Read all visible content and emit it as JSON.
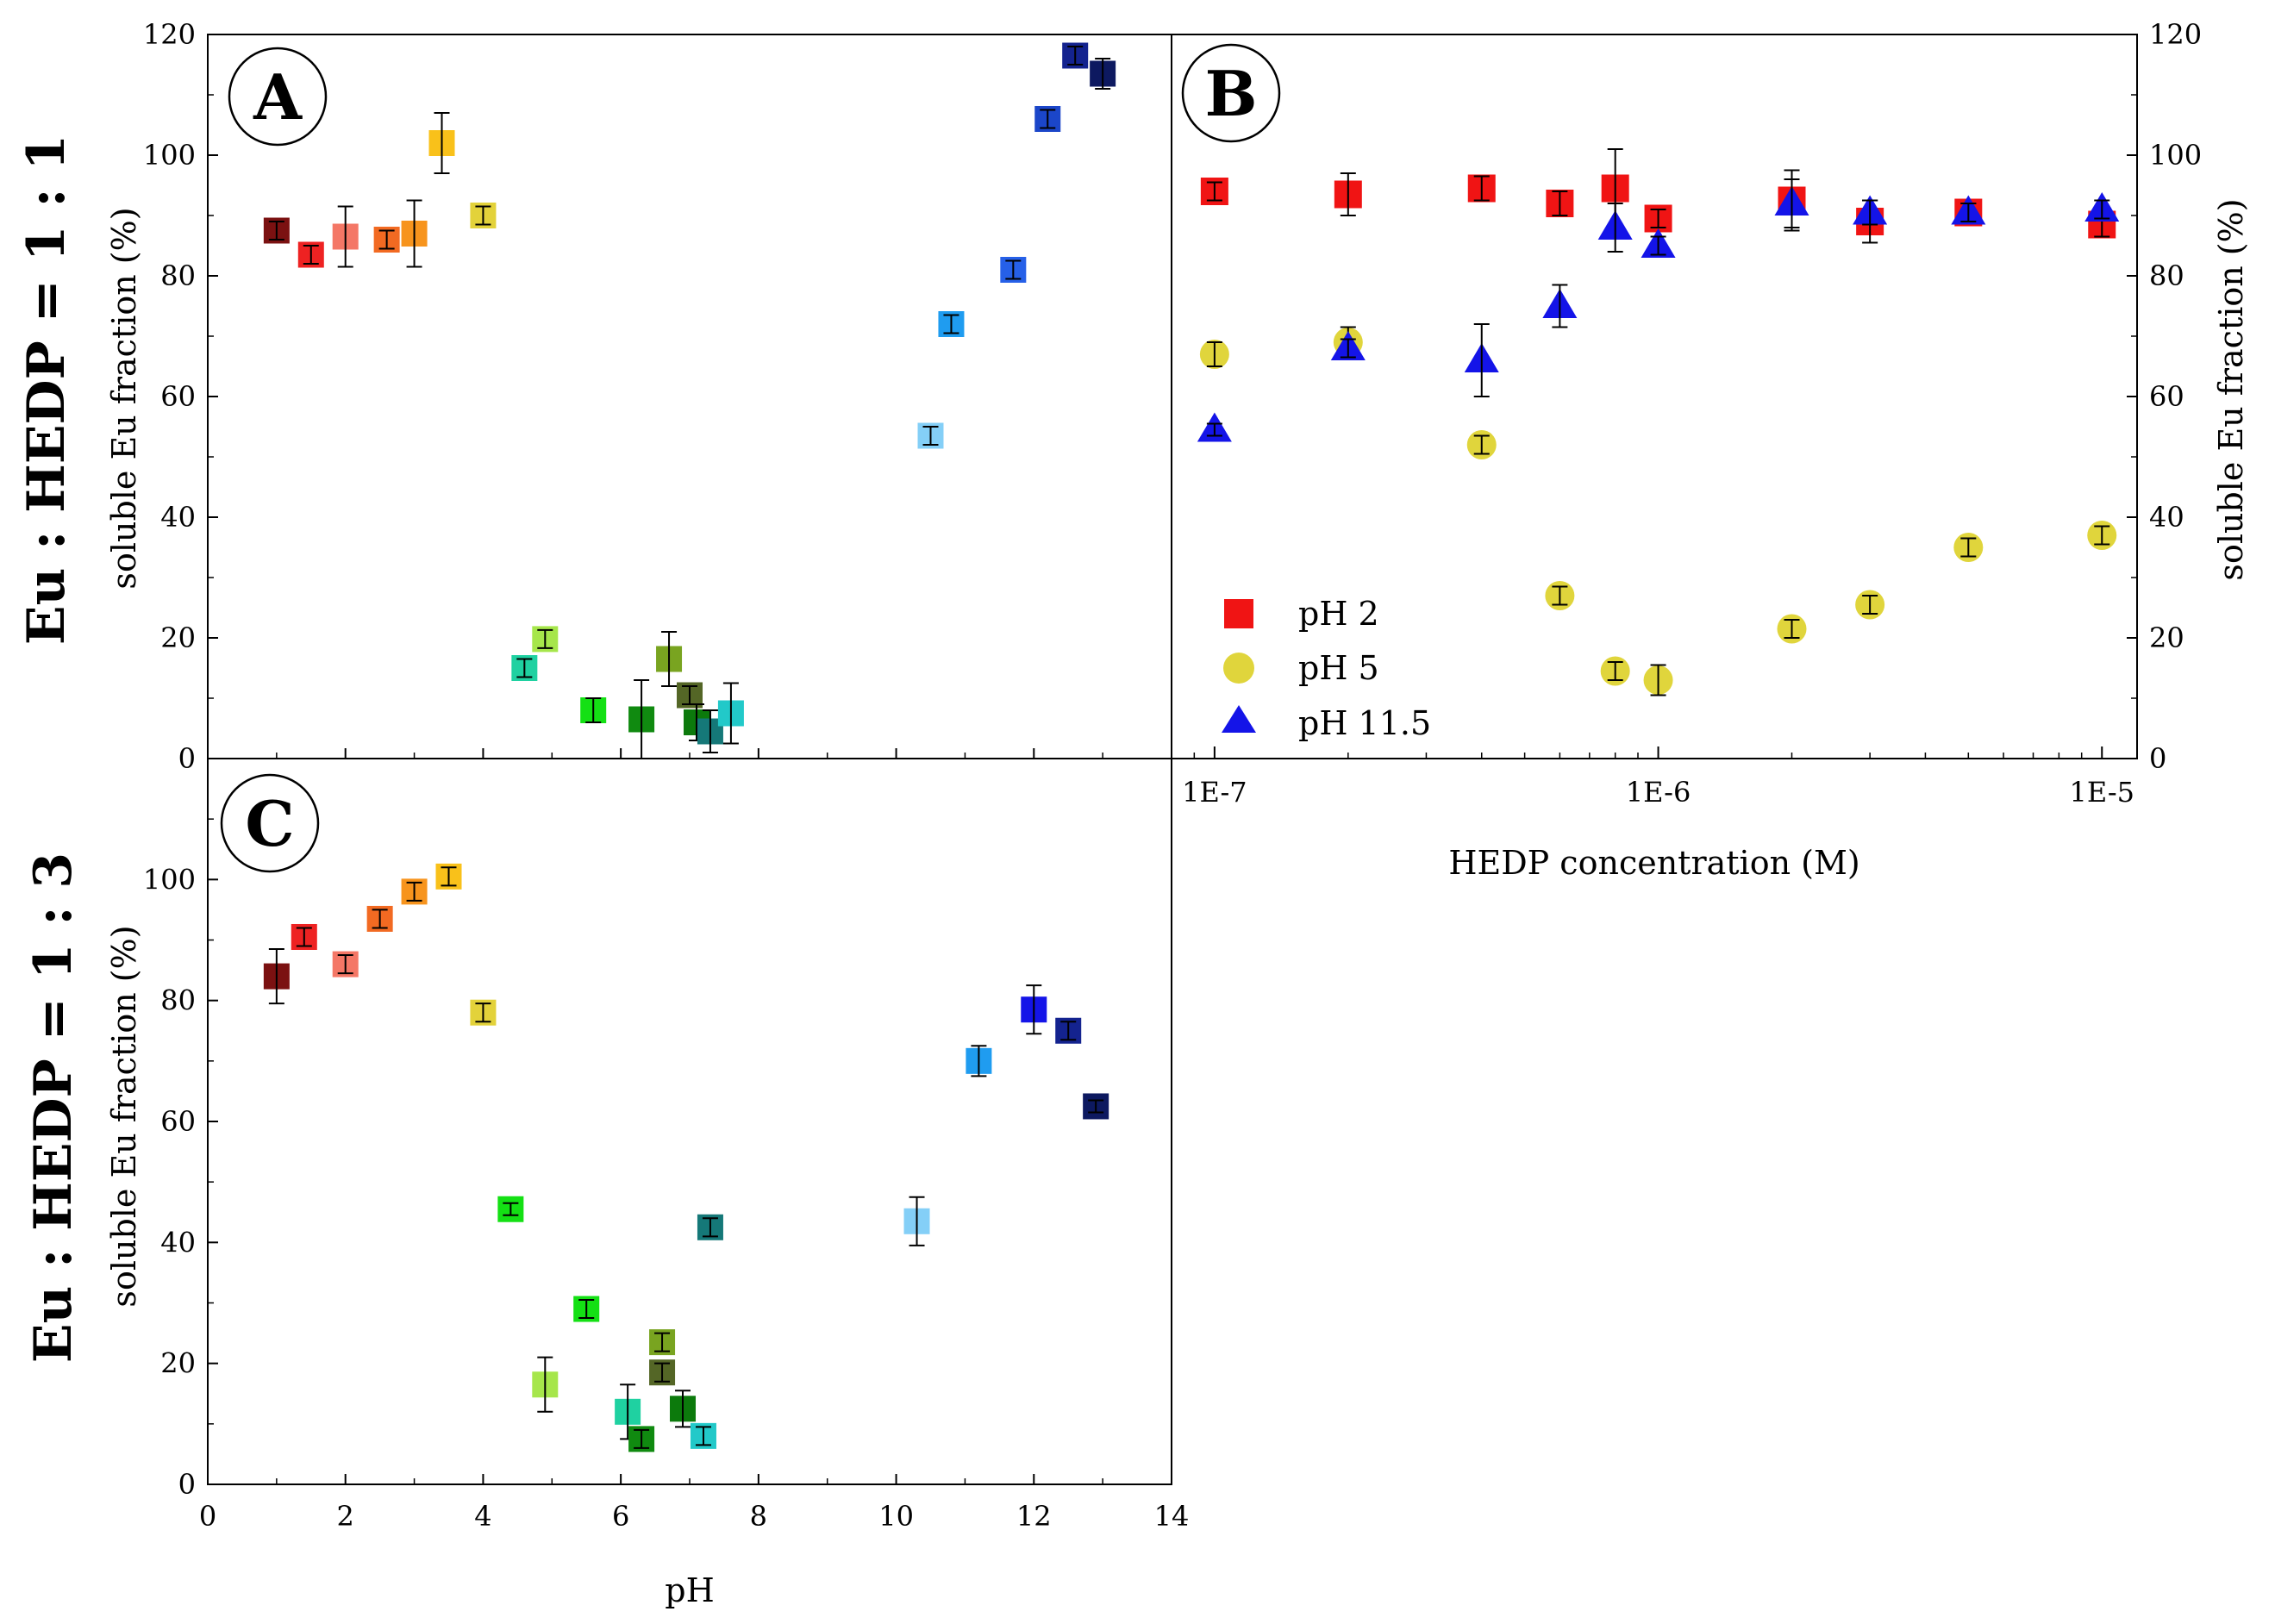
{
  "figure": {
    "row_labels": [
      "Eu : HEDP = 1 : 1",
      "Eu : HEDP = 1 : 3"
    ]
  },
  "chart_data": [
    {
      "panel": "A",
      "type": "scatter",
      "xlabel": "",
      "ylabel": "soluble Eu fraction (%)",
      "xlim": [
        0,
        14
      ],
      "ylim": [
        0,
        120
      ],
      "yticks": [
        "0",
        "20",
        "40",
        "60",
        "80",
        "100",
        "120"
      ],
      "show_x_ticklabels": false,
      "points": [
        {
          "x": 1.0,
          "y": 87.5,
          "err": 1.5,
          "color": "#7B1111"
        },
        {
          "x": 1.5,
          "y": 83.5,
          "err": 1.5,
          "color": "#EE2222"
        },
        {
          "x": 2.0,
          "y": 86.5,
          "err": 5.0,
          "color": "#F47766"
        },
        {
          "x": 2.6,
          "y": 86.0,
          "err": 1.5,
          "color": "#F26A22"
        },
        {
          "x": 3.0,
          "y": 87.0,
          "err": 5.5,
          "color": "#F7941D"
        },
        {
          "x": 3.4,
          "y": 102.0,
          "err": 5.0,
          "color": "#F9C11A"
        },
        {
          "x": 4.0,
          "y": 90.0,
          "err": 1.5,
          "color": "#E3D23A"
        },
        {
          "x": 4.6,
          "y": 15.0,
          "err": 1.5,
          "color": "#1FD1A1"
        },
        {
          "x": 4.9,
          "y": 19.8,
          "err": 1.5,
          "color": "#A6E64B"
        },
        {
          "x": 5.6,
          "y": 8.0,
          "err": 2.0,
          "color": "#14E014"
        },
        {
          "x": 6.3,
          "y": 6.5,
          "err": 6.5,
          "color": "#108A10"
        },
        {
          "x": 6.7,
          "y": 16.5,
          "err": 4.5,
          "color": "#79A420"
        },
        {
          "x": 7.0,
          "y": 10.5,
          "err": 1.5,
          "color": "#546626"
        },
        {
          "x": 7.1,
          "y": 6.0,
          "err": 3.0,
          "color": "#0C7A0C"
        },
        {
          "x": 7.3,
          "y": 4.5,
          "err": 3.5,
          "color": "#157878"
        },
        {
          "x": 7.6,
          "y": 7.5,
          "err": 5.0,
          "color": "#22C9C9"
        },
        {
          "x": 10.5,
          "y": 53.5,
          "err": 1.5,
          "color": "#84CFF7"
        },
        {
          "x": 10.8,
          "y": 72.0,
          "err": 1.5,
          "color": "#1F9CF0"
        },
        {
          "x": 11.7,
          "y": 81.0,
          "err": 1.5,
          "color": "#2660E8"
        },
        {
          "x": 12.2,
          "y": 106.0,
          "err": 1.5,
          "color": "#1B46C9"
        },
        {
          "x": 12.6,
          "y": 116.5,
          "err": 1.5,
          "color": "#14238F"
        },
        {
          "x": 13.0,
          "y": 113.5,
          "err": 2.5,
          "color": "#0D1960"
        }
      ]
    },
    {
      "panel": "B",
      "type": "scatter",
      "xlabel": "HEDP concentration (M)",
      "ylabel": "soluble Eu fraction (%)",
      "xscale": "log",
      "xlim": [
        8e-08,
        1.2e-05
      ],
      "ylim": [
        0,
        120
      ],
      "yticks": [
        "0",
        "20",
        "40",
        "60",
        "80",
        "100",
        "120"
      ],
      "xticks": [
        "1E-7",
        "1E-6",
        "1E-5"
      ],
      "legend_position": "bottom-left",
      "series": [
        {
          "name": "pH 2",
          "marker": "square",
          "color": "#F01414",
          "x": [
            1e-07,
            2e-07,
            4e-07,
            6e-07,
            8e-07,
            1e-06,
            2e-06,
            3e-06,
            5e-06,
            1e-05
          ],
          "y": [
            94.0,
            93.5,
            94.5,
            92.0,
            94.5,
            89.5,
            92.5,
            89.0,
            90.5,
            88.5
          ],
          "err": [
            1.5,
            3.5,
            2.0,
            2.0,
            6.5,
            1.5,
            5.0,
            3.5,
            1.5,
            2.0
          ]
        },
        {
          "name": "pH 5",
          "marker": "circle",
          "color": "#E0D53C",
          "x": [
            1e-07,
            2e-07,
            4e-07,
            6e-07,
            8e-07,
            1e-06,
            2e-06,
            3e-06,
            5e-06,
            1e-05
          ],
          "y": [
            67.0,
            69.0,
            52.0,
            27.0,
            14.5,
            13.0,
            21.5,
            25.5,
            35.0,
            37.0
          ],
          "err": [
            2.0,
            2.5,
            1.5,
            1.5,
            1.5,
            2.5,
            1.5,
            1.5,
            1.5,
            1.5
          ]
        },
        {
          "name": "pH 11.5",
          "marker": "triangle",
          "color": "#1414E8",
          "x": [
            1e-07,
            2e-07,
            4e-07,
            6e-07,
            8e-07,
            1e-06,
            2e-06,
            3e-06,
            5e-06,
            1e-05
          ],
          "y": [
            54.5,
            68.0,
            66.0,
            75.0,
            88.0,
            85.0,
            92.0,
            90.5,
            90.5,
            91.0
          ],
          "err": [
            1.0,
            1.5,
            6.0,
            3.5,
            4.0,
            1.5,
            4.0,
            2.0,
            1.5,
            1.5
          ]
        }
      ]
    },
    {
      "panel": "C",
      "type": "scatter",
      "xlabel": "pH",
      "ylabel": "soluble Eu fraction (%)",
      "xlim": [
        0,
        14
      ],
      "ylim": [
        0,
        120
      ],
      "yticks": [
        "0",
        "20",
        "40",
        "60",
        "80",
        "100",
        ""
      ],
      "xticks": [
        "0",
        "2",
        "4",
        "6",
        "8",
        "10",
        "12",
        "14"
      ],
      "points": [
        {
          "x": 1.0,
          "y": 84.0,
          "err": 4.5,
          "color": "#7B1111"
        },
        {
          "x": 1.4,
          "y": 90.5,
          "err": 1.5,
          "color": "#EE2222"
        },
        {
          "x": 2.0,
          "y": 86.0,
          "err": 1.5,
          "color": "#F47766"
        },
        {
          "x": 2.5,
          "y": 93.5,
          "err": 1.5,
          "color": "#F26A22"
        },
        {
          "x": 3.0,
          "y": 98.0,
          "err": 1.5,
          "color": "#F7941D"
        },
        {
          "x": 3.5,
          "y": 100.5,
          "err": 1.5,
          "color": "#F9C11A"
        },
        {
          "x": 4.0,
          "y": 78.0,
          "err": 1.5,
          "color": "#E3D23A"
        },
        {
          "x": 4.4,
          "y": 45.5,
          "err": 1.0,
          "color": "#14E014"
        },
        {
          "x": 4.9,
          "y": 16.5,
          "err": 4.5,
          "color": "#A6E64B"
        },
        {
          "x": 5.5,
          "y": 29.0,
          "err": 1.5,
          "color": "#14E014"
        },
        {
          "x": 6.1,
          "y": 12.0,
          "err": 4.5,
          "color": "#1FD1A1"
        },
        {
          "x": 6.3,
          "y": 7.5,
          "err": 1.5,
          "color": "#108A10"
        },
        {
          "x": 6.6,
          "y": 18.5,
          "err": 1.5,
          "color": "#546626"
        },
        {
          "x": 6.6,
          "y": 23.5,
          "err": 1.5,
          "color": "#79A420"
        },
        {
          "x": 6.9,
          "y": 12.5,
          "err": 3.0,
          "color": "#0C7A0C"
        },
        {
          "x": 7.2,
          "y": 8.0,
          "err": 1.5,
          "color": "#22C9C9"
        },
        {
          "x": 7.3,
          "y": 42.5,
          "err": 1.5,
          "color": "#157878"
        },
        {
          "x": 10.3,
          "y": 43.5,
          "err": 4.0,
          "color": "#84CFF7"
        },
        {
          "x": 11.2,
          "y": 70.0,
          "err": 2.5,
          "color": "#1F9CF0"
        },
        {
          "x": 12.0,
          "y": 78.5,
          "err": 4.0,
          "color": "#1414E8"
        },
        {
          "x": 12.5,
          "y": 75.0,
          "err": 1.5,
          "color": "#14238F"
        },
        {
          "x": 12.9,
          "y": 62.5,
          "err": 1.0,
          "color": "#0D1960"
        }
      ]
    }
  ]
}
